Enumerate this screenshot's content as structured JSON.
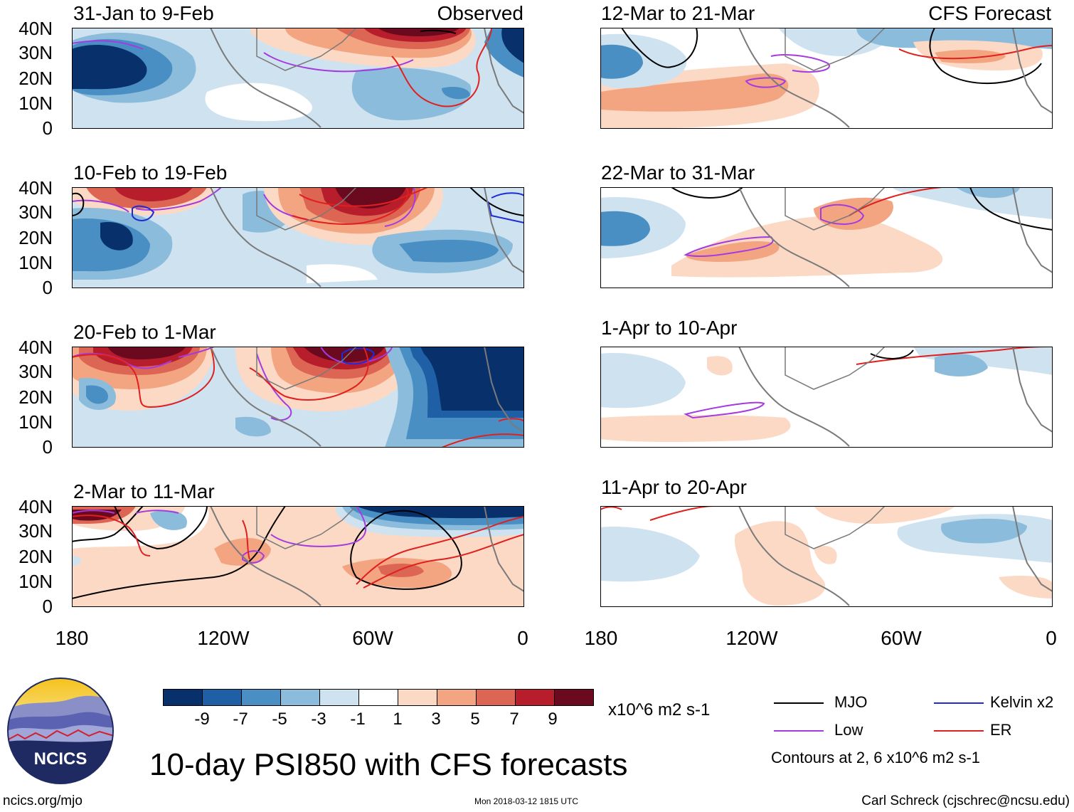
{
  "colors": {
    "neg9": "#08306b",
    "neg7": "#1f5fa6",
    "neg5": "#4a8fc4",
    "neg3": "#8cbcdc",
    "neg1": "#cfe2f0",
    "zero": "#ffffff",
    "pos1": "#fcd9c4",
    "pos3": "#f3a582",
    "pos5": "#dc6553",
    "pos7": "#b71d2b",
    "pos9": "#6b0a1f",
    "land": "#7a7a7a",
    "mjo": "#000000",
    "low": "#a43be0",
    "kelvin": "#1f2bd6",
    "er": "#e0201e"
  },
  "observed": {
    "tag": "Observed",
    "panels": [
      {
        "title": "31-Jan to 9-Feb"
      },
      {
        "title": "10-Feb to 19-Feb"
      },
      {
        "title": "20-Feb to 1-Mar"
      },
      {
        "title": "2-Mar to 11-Mar"
      }
    ]
  },
  "forecast": {
    "tag": "CFS Forecast",
    "panels": [
      {
        "title": "12-Mar to 21-Mar"
      },
      {
        "title": "22-Mar to 31-Mar"
      },
      {
        "title": "1-Apr to 10-Apr"
      },
      {
        "title": "11-Apr to 20-Apr"
      }
    ]
  },
  "axes": {
    "y_labels": [
      "40N",
      "30N",
      "20N",
      "10N",
      "0"
    ],
    "x_labels": [
      "180",
      "120W",
      "60W",
      "0"
    ]
  },
  "colorbar": {
    "labels": [
      "-9",
      "-7",
      "-5",
      "-3",
      "-1",
      "1",
      "3",
      "5",
      "7",
      "9"
    ],
    "units": "x10^6 m2 s-1"
  },
  "legend": {
    "mjo": "MJO",
    "low": "Low",
    "kelvin": "Kelvin x2",
    "er": "ER",
    "note": "Contours at 2, 6 x10^6 m2 s-1"
  },
  "title": "10-day PSI850 with CFS forecasts",
  "footer": {
    "left": "ncics.org/mjo",
    "center": "Mon 2018-03-12 1815 UTC",
    "right": "Carl Schreck (cjschrec@ncsu.edu)"
  },
  "logo": {
    "text": "NCICS"
  }
}
